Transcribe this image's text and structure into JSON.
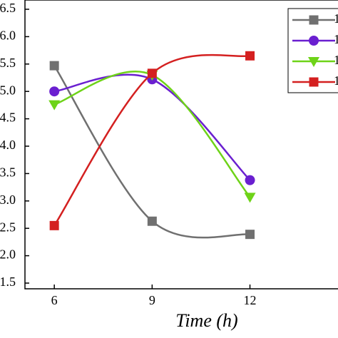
{
  "chart_data": {
    "type": "line",
    "xlabel": "Time (h)",
    "x": [
      6,
      9,
      12
    ],
    "xlim": [
      5.1,
      14.7
    ],
    "xticks": [
      6,
      9,
      12
    ],
    "ylim": [
      1.5,
      6.5
    ],
    "yticks": [
      {
        "value": 1.5,
        "label": "1.5"
      },
      {
        "value": 2,
        "label": "2.0"
      },
      {
        "value": 2.5,
        "label": "2.5"
      },
      {
        "value": 3,
        "label": "3.0"
      },
      {
        "value": 3.5,
        "label": "3.5"
      },
      {
        "value": 4,
        "label": "4.0"
      },
      {
        "value": 4.5,
        "label": "4.5"
      },
      {
        "value": 5,
        "label": "5.0"
      },
      {
        "value": 5.5,
        "label": "5.5"
      },
      {
        "value": 6,
        "label": "6.0"
      },
      {
        "value": 6.5,
        "label": "6.5"
      }
    ],
    "series": [
      {
        "name": "1",
        "color": "#707070",
        "marker": "square",
        "values": [
          5.47,
          2.63,
          2.39
        ]
      },
      {
        "name": "1",
        "color": "#6a1fd0",
        "marker": "circle",
        "values": [
          5.0,
          5.22,
          3.38
        ]
      },
      {
        "name": "1",
        "color": "#6ed318",
        "marker": "triangle",
        "values": [
          4.76,
          5.3,
          3.07
        ]
      },
      {
        "name": "1",
        "color": "#d42020",
        "marker": "square",
        "values": [
          2.55,
          5.33,
          5.65
        ]
      }
    ]
  }
}
